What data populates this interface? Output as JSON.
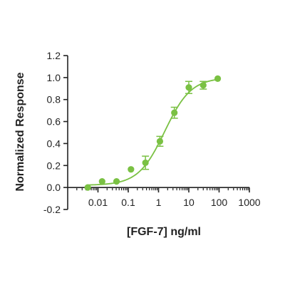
{
  "chart_data": {
    "type": "scatter",
    "title": "",
    "xlabel": "[FGF-7] ng/ml",
    "ylabel": "Normalized Response",
    "x_scale": "log",
    "xlim": [
      0.001,
      1000
    ],
    "ylim": [
      -0.2,
      1.2
    ],
    "x_ticks": [
      {
        "value": 0.01,
        "label": "0.01"
      },
      {
        "value": 0.1,
        "label": "0.1"
      },
      {
        "value": 1,
        "label": "1"
      },
      {
        "value": 10,
        "label": "10"
      },
      {
        "value": 100,
        "label": "100"
      },
      {
        "value": 1000,
        "label": "1000"
      }
    ],
    "y_ticks": [
      {
        "value": -0.2,
        "label": "-0.2"
      },
      {
        "value": 0.0,
        "label": "0.0"
      },
      {
        "value": 0.2,
        "label": "0.2"
      },
      {
        "value": 0.4,
        "label": "0.4"
      },
      {
        "value": 0.6,
        "label": "0.6"
      },
      {
        "value": 0.8,
        "label": "0.8"
      },
      {
        "value": 1.0,
        "label": "1.0"
      },
      {
        "value": 1.2,
        "label": "1.2"
      }
    ],
    "series": [
      {
        "color": "#7ac143",
        "points": [
          {
            "x": 0.0046,
            "y": 0.0,
            "err": 0.0
          },
          {
            "x": 0.0137,
            "y": 0.055,
            "err": 0.0
          },
          {
            "x": 0.041,
            "y": 0.055,
            "err": 0.0
          },
          {
            "x": 0.123,
            "y": 0.165,
            "err": 0.0
          },
          {
            "x": 0.37,
            "y": 0.225,
            "err": 0.06
          },
          {
            "x": 1.11,
            "y": 0.42,
            "err": 0.045
          },
          {
            "x": 3.33,
            "y": 0.68,
            "err": 0.05
          },
          {
            "x": 10,
            "y": 0.91,
            "err": 0.055
          },
          {
            "x": 30,
            "y": 0.93,
            "err": 0.035
          },
          {
            "x": 90,
            "y": 0.99,
            "err": 0.0
          }
        ],
        "fit": {
          "model": "4PL",
          "bottom": 0.02,
          "top": 1.0,
          "ec50": 1.6,
          "hill": 1.0,
          "x_range": [
            0.0046,
            90
          ]
        }
      }
    ],
    "grid": false,
    "legend": "none"
  }
}
